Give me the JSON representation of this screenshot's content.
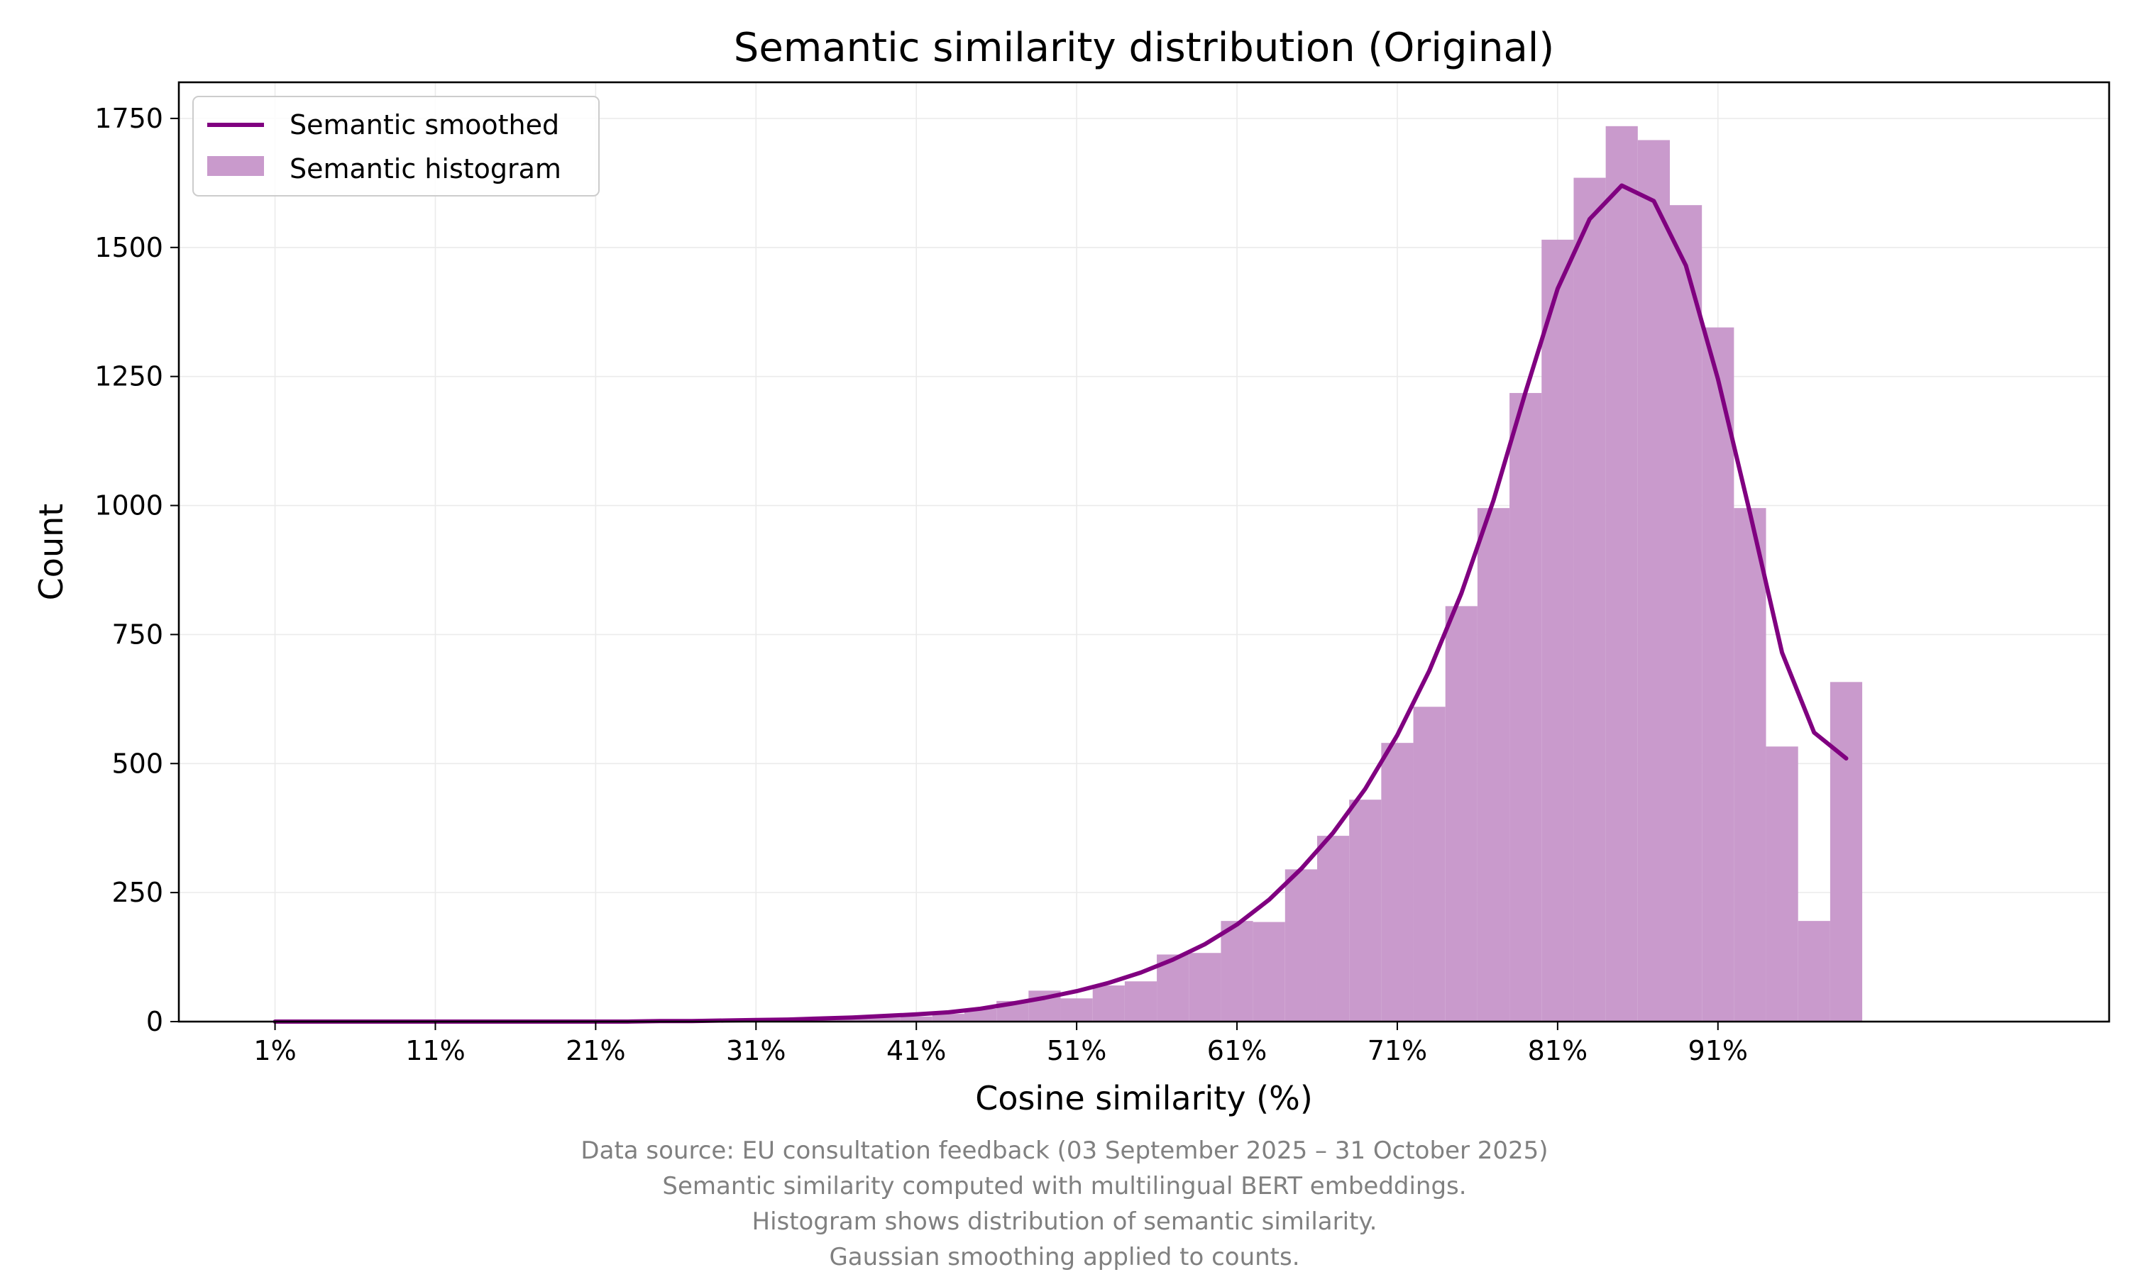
{
  "chart_data": {
    "type": "bar",
    "title": "Semantic similarity distribution (Original)",
    "xlabel": "Cosine similarity (%)",
    "ylabel": "Count",
    "xlim": [
      -5,
      115.4
    ],
    "ylim": [
      0,
      1820
    ],
    "x_ticks": [
      1,
      11,
      21,
      31,
      41,
      51,
      61,
      71,
      81,
      91
    ],
    "x_tick_labels": [
      "1%",
      "11%",
      "21%",
      "31%",
      "41%",
      "51%",
      "61%",
      "71%",
      "81%",
      "91%"
    ],
    "y_ticks": [
      0,
      250,
      500,
      750,
      1000,
      1250,
      1500,
      1750
    ],
    "y_tick_labels": [
      "0",
      "250",
      "500",
      "750",
      "1000",
      "1250",
      "1500",
      "1750"
    ],
    "grid": true,
    "legend_position": "top-left",
    "series": [
      {
        "name": "Semantic smoothed",
        "type": "line",
        "color": "#800080",
        "x": [
          1,
          3,
          5,
          7,
          9,
          11,
          13,
          15,
          17,
          19,
          21,
          23,
          25,
          27,
          29,
          31,
          33,
          35,
          37,
          39,
          41,
          43,
          45,
          47,
          49,
          51,
          53,
          55,
          57,
          59,
          61,
          63,
          65,
          67,
          69,
          71,
          73,
          75,
          77,
          79,
          81,
          83,
          85,
          87,
          89,
          91,
          93,
          95,
          97,
          99
        ],
        "values": [
          0,
          0,
          0,
          0,
          0,
          0,
          0,
          0,
          0,
          0,
          0,
          0,
          1,
          1,
          2,
          3,
          4,
          6,
          8,
          11,
          14,
          18,
          25,
          35,
          46,
          59,
          75,
          95,
          120,
          150,
          188,
          236,
          296,
          366,
          451,
          555,
          680,
          830,
          1010,
          1220,
          1420,
          1555,
          1620,
          1590,
          1465,
          1245,
          985,
          715,
          560,
          510
        ]
      },
      {
        "name": "Semantic histogram",
        "type": "histogram",
        "color": "#c99acc",
        "bin_width": 2,
        "x": [
          1,
          3,
          5,
          7,
          9,
          11,
          13,
          15,
          17,
          19,
          21,
          23,
          25,
          27,
          29,
          31,
          33,
          35,
          37,
          39,
          41,
          43,
          45,
          47,
          49,
          51,
          53,
          55,
          57,
          59,
          61,
          63,
          65,
          67,
          69,
          71,
          73,
          75,
          77,
          79,
          81,
          83,
          85,
          87,
          89,
          91,
          93,
          95,
          97,
          99
        ],
        "values": [
          0,
          0,
          0,
          0,
          0,
          0,
          0,
          0,
          0,
          0,
          0,
          0,
          0,
          0,
          1,
          2,
          3,
          4,
          6,
          8,
          10,
          15,
          25,
          40,
          60,
          45,
          70,
          78,
          130,
          133,
          195,
          193,
          295,
          360,
          430,
          540,
          610,
          805,
          995,
          1218,
          1515,
          1635,
          1735,
          1708,
          1582,
          1345,
          995,
          533,
          195,
          658
        ]
      }
    ]
  },
  "footnotes": {
    "line1": "Data source: EU consultation feedback (03 September 2025 – 31 October 2025)",
    "line2": "Semantic similarity computed with multilingual BERT embeddings.",
    "line3": "Histogram shows distribution of semantic similarity.",
    "line4": "Gaussian smoothing applied to counts."
  }
}
